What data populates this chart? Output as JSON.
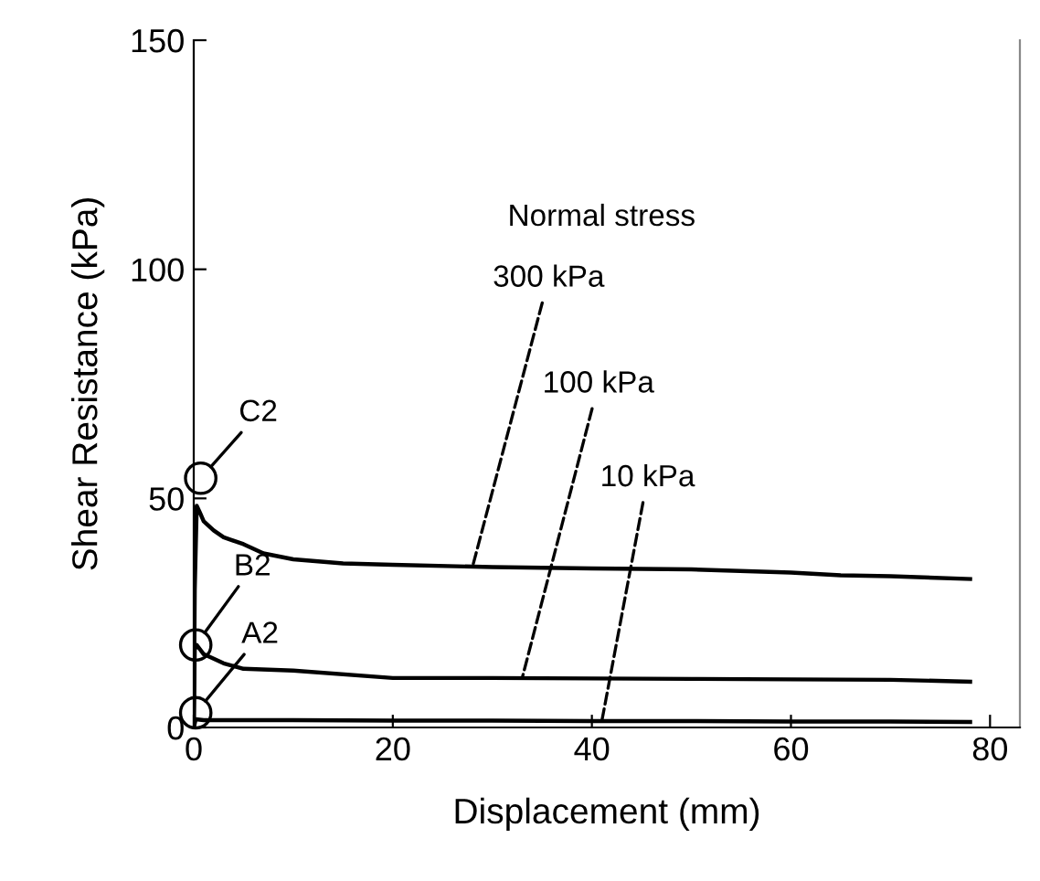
{
  "chart_data": {
    "type": "line",
    "xlabel": "Displacement (mm)",
    "ylabel": "Shear Resistance (kPa)",
    "xlim": [
      0,
      83
    ],
    "ylim": [
      0,
      150
    ],
    "xticks": [
      0,
      20,
      40,
      60,
      80
    ],
    "yticks": [
      0,
      50,
      100,
      150
    ],
    "grid": false,
    "marker": "none",
    "line_style": "solid",
    "series": [
      {
        "color": "#000000",
        "x": [
          0,
          0.1,
          0.3,
          0.6,
          1,
          2,
          3,
          5,
          7,
          10,
          15,
          20,
          30,
          40,
          50,
          60,
          65,
          70,
          78
        ],
        "values": [
          0,
          30,
          48.4,
          47,
          45,
          43,
          41.5,
          40,
          38,
          36.7,
          35.8,
          35.5,
          35,
          34.7,
          34.5,
          33.8,
          33.2,
          33,
          32.4
        ]
      },
      {
        "color": "#000000",
        "x": [
          0,
          0.1,
          0.3,
          1,
          3,
          5,
          10,
          20,
          30,
          40,
          50,
          60,
          70,
          78
        ],
        "values": [
          0,
          17,
          18,
          16,
          14,
          12.8,
          12.4,
          10.8,
          10.8,
          10.7,
          10.6,
          10.5,
          10.4,
          10
        ]
      },
      {
        "color": "#000000",
        "x": [
          0,
          0.2,
          1,
          10,
          20,
          30,
          40,
          50,
          60,
          70,
          78
        ],
        "values": [
          0,
          1.8,
          1.6,
          1.6,
          1.5,
          1.5,
          1.4,
          1.4,
          1.3,
          1.3,
          1.2
        ]
      }
    ],
    "annotations": [
      "Normal stress",
      {
        "text": "300 kPa",
        "x": 28,
        "y": 35
      },
      {
        "text": "100 kPa",
        "x": 33,
        "y": 10.8
      },
      {
        "text": "10 kPa",
        "x": 41,
        "y": 1.4
      },
      {
        "text": "C2",
        "x": 0.7,
        "y": 54.4
      },
      {
        "text": "B2",
        "x": 0.2,
        "y": 18
      },
      {
        "text": "A2",
        "x": 0.2,
        "y": 3.2
      }
    ]
  }
}
